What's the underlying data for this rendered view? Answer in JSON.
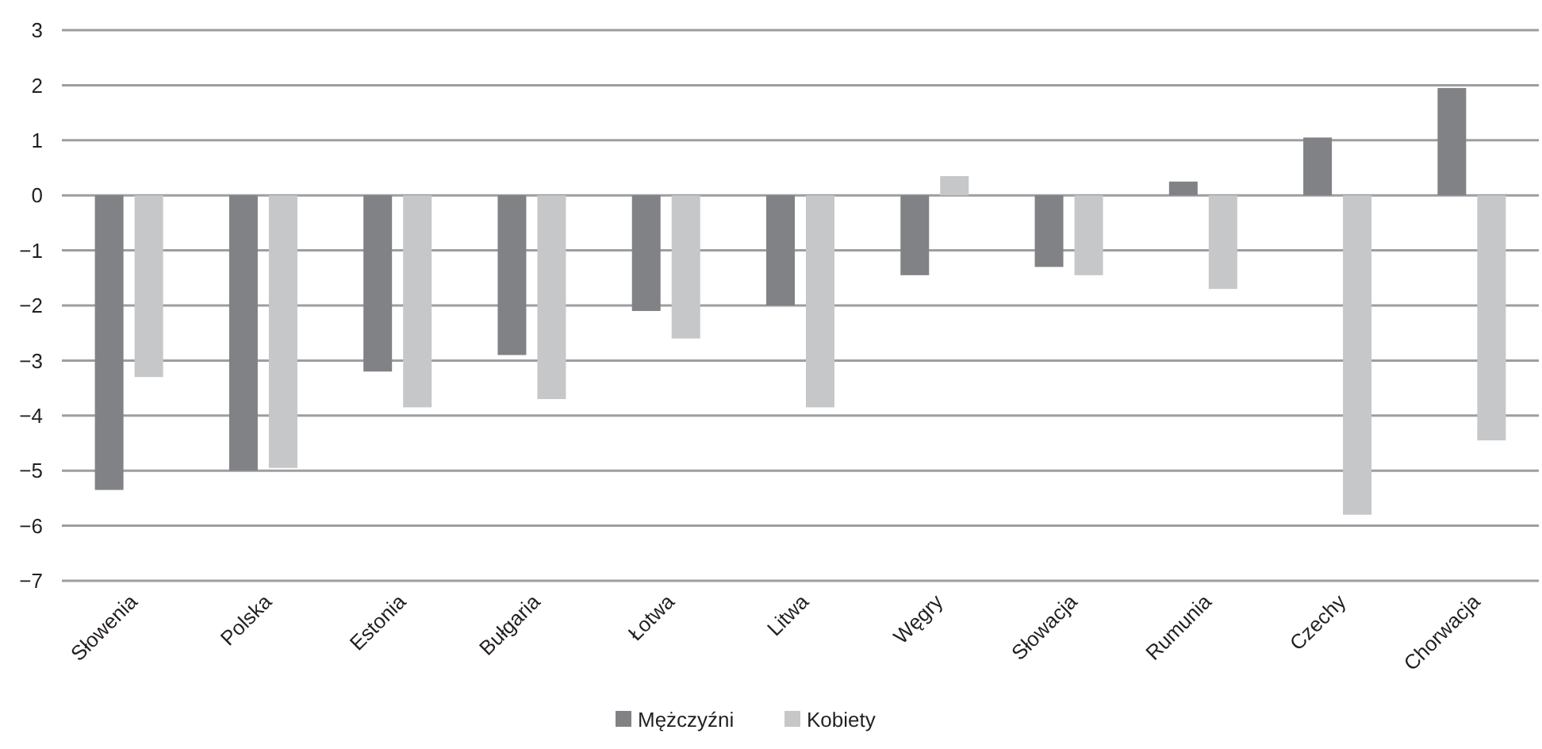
{
  "chart_data": {
    "type": "bar",
    "categories": [
      "Słowenia",
      "Polska",
      "Estonia",
      "Bułgaria",
      "Łotwa",
      "Litwa",
      "Węgry",
      "Słowacja",
      "Rumunia",
      "Czechy",
      "Chorwacja"
    ],
    "series": [
      {
        "name": "Mężczyźni",
        "color": "#818285",
        "values": [
          -5.35,
          -5.0,
          -3.2,
          -2.9,
          -2.1,
          -2.0,
          -1.45,
          -1.3,
          0.25,
          1.05,
          1.95
        ]
      },
      {
        "name": "Kobiety",
        "color": "#c6c7c9",
        "values": [
          -3.3,
          -4.95,
          -3.85,
          -3.7,
          -2.6,
          -3.85,
          0.35,
          -1.45,
          -1.7,
          -5.8,
          -4.45
        ]
      }
    ],
    "ylim": [
      -7,
      3
    ],
    "yticks": [
      {
        "value": -7,
        "label": "−7"
      },
      {
        "value": -6,
        "label": "−6"
      },
      {
        "value": -5,
        "label": "−5"
      },
      {
        "value": -4,
        "label": "−4"
      },
      {
        "value": -3,
        "label": "−3"
      },
      {
        "value": -2,
        "label": "−2"
      },
      {
        "value": -1,
        "label": "−1"
      },
      0,
      1,
      2,
      3
    ],
    "grid": "y",
    "legend": "bottom"
  }
}
